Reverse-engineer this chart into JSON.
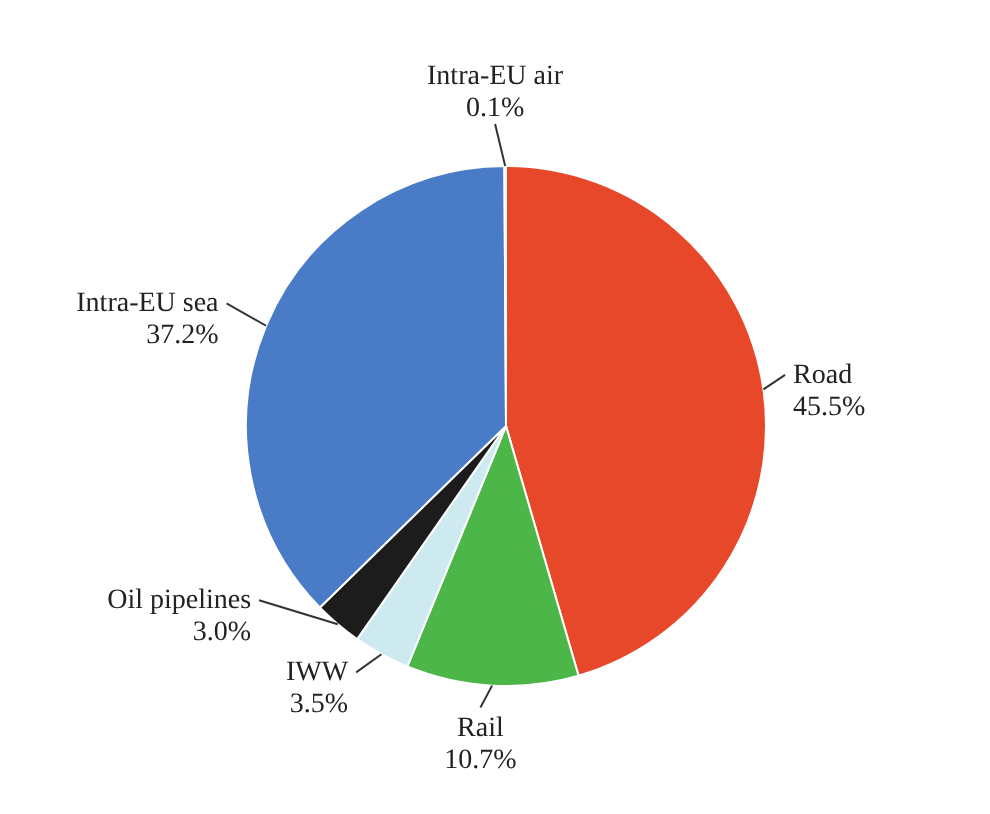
{
  "chart_data": {
    "type": "pie",
    "categories": [
      "Road",
      "Rail",
      "IWW",
      "Oil pipelines",
      "Intra-EU sea",
      "Intra-EU air"
    ],
    "values": [
      45.5,
      10.7,
      3.5,
      3.0,
      37.2,
      0.1
    ],
    "value_labels": [
      "45.5%",
      "10.7%",
      "3.5%",
      "3.0%",
      "37.2%",
      "0.1%"
    ],
    "colors": [
      "#e8482a",
      "#4cb648",
      "#cdeaf0",
      "#1c1c1c",
      "#4a7bc6",
      "#d9d9d9"
    ]
  }
}
